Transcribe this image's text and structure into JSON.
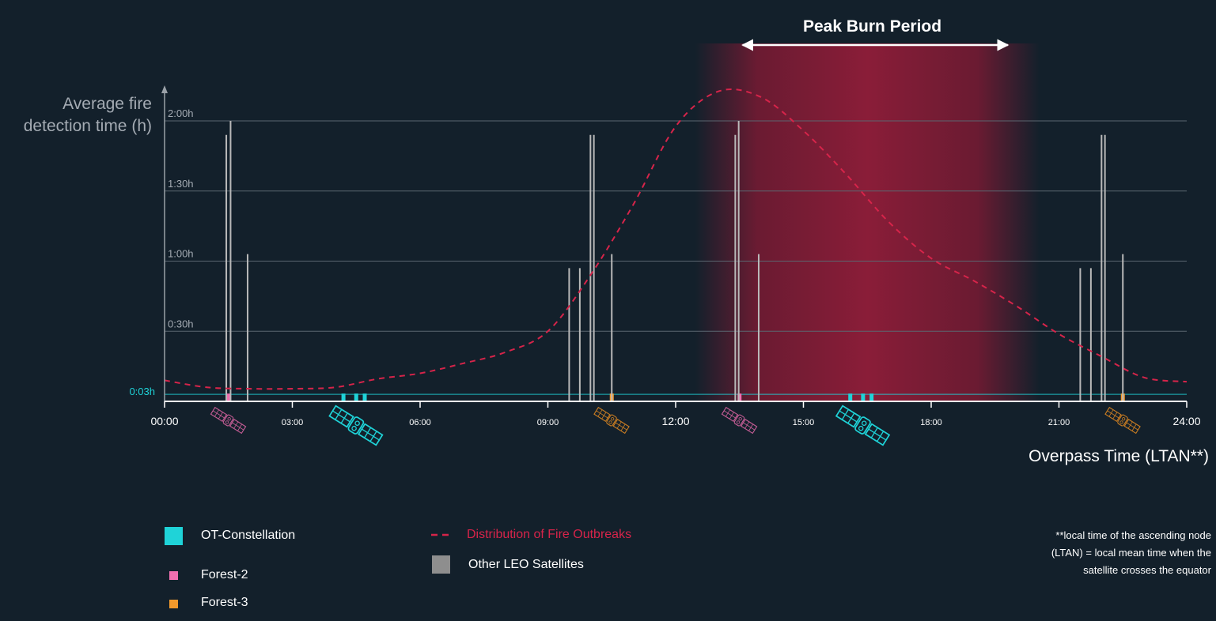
{
  "chart_data": {
    "type": "line",
    "title": "Peak Burn Period",
    "ylabel": "Average fire detection time (h)",
    "xlabel": "Overpass Time (LTAN**)",
    "xlim": [
      0,
      24
    ],
    "ylim": [
      0,
      2.3
    ],
    "x_ticks": [
      "00:00",
      "03:00",
      "06:00",
      "09:00",
      "12:00",
      "15:00",
      "18:00",
      "21:00",
      "24:00"
    ],
    "y_ticks": [
      {
        "label": "0:03h",
        "value": 0.05
      },
      {
        "label": "0:30h",
        "value": 0.5
      },
      {
        "label": "1:00h",
        "value": 1.0
      },
      {
        "label": "1:30h",
        "value": 1.5
      },
      {
        "label": "2:00h",
        "value": 2.0
      }
    ],
    "peak_burn_period": [
      13.2,
      19.8
    ],
    "series": [
      {
        "name": "Distribution of Fire Outbreaks",
        "style": "dashed",
        "color": "#d6244a",
        "x": [
          0,
          1,
          2,
          3,
          4,
          5,
          6,
          7,
          8,
          9,
          10,
          11,
          12,
          13,
          14,
          15,
          16,
          17,
          18,
          19,
          20,
          21,
          22,
          23,
          24
        ],
        "y": [
          0.15,
          0.1,
          0.09,
          0.09,
          0.1,
          0.16,
          0.2,
          0.27,
          0.35,
          0.5,
          0.9,
          1.4,
          1.96,
          2.21,
          2.17,
          1.93,
          1.62,
          1.28,
          1.02,
          0.86,
          0.68,
          0.48,
          0.32,
          0.17,
          0.14
        ]
      },
      {
        "name": "OT-Constellation",
        "color": "#1fd3d8",
        "type": "overpass",
        "x": [
          4.2,
          4.5,
          4.7,
          16.1,
          16.4,
          16.6
        ],
        "y": [
          0.05,
          0.05,
          0.05,
          0.05,
          0.05,
          0.05
        ]
      },
      {
        "name": "Forest-2",
        "color": "#f06fb0",
        "type": "overpass",
        "x": [
          1.5,
          13.5
        ],
        "y": [
          0.05,
          0.05
        ]
      },
      {
        "name": "Forest-3",
        "color": "#f39a2c",
        "type": "overpass",
        "x": [
          10.5,
          22.5
        ],
        "y": [
          0.05,
          0.05
        ]
      },
      {
        "name": "Other LEO Satellites",
        "color": "#8e8e8e",
        "type": "bar",
        "x": [
          1.45,
          1.55,
          1.95,
          9.5,
          9.75,
          10.0,
          10.08,
          10.5,
          13.4,
          13.48,
          13.95,
          21.5,
          21.75,
          22.0,
          22.08,
          22.5
        ],
        "y": [
          1.9,
          2.0,
          1.05,
          0.95,
          0.95,
          1.9,
          1.9,
          1.05,
          1.9,
          2.0,
          1.05,
          0.95,
          0.95,
          1.9,
          1.9,
          1.05
        ]
      }
    ],
    "legend_placement": "bottom"
  },
  "legend": {
    "ot": "OT-Constellation",
    "forest2": "Forest-2",
    "forest3": "Forest-3",
    "fire": "Distribution of Fire Outbreaks",
    "leo": "Other LEO Satellites"
  },
  "footnote": "**local time of the ascending node (LTAN) = local mean time when the satellite crosses the equator",
  "colors": {
    "background": "#13202b",
    "ot": "#1fd3d8",
    "forest2": "#f06fb0",
    "forest3": "#f39a2c",
    "fire": "#d6244a",
    "leo": "#8e8e8e",
    "axis": "#ffffff"
  },
  "icons": [
    "satellite-icon"
  ]
}
